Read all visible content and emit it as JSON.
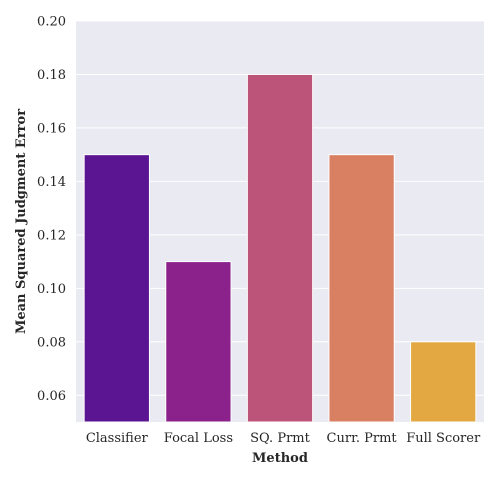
{
  "chart_data": {
    "type": "bar",
    "title": "",
    "xlabel": "Method",
    "ylabel": "Mean Squared Judgment Error",
    "categories": [
      "Classifier",
      "Focal Loss",
      "SQ. Prmt",
      "Curr. Prmt",
      "Full Scorer"
    ],
    "values": [
      0.15,
      0.11,
      0.18,
      0.15,
      0.08
    ],
    "colors": [
      "#5c1592",
      "#8b228c",
      "#bc5479",
      "#d98062",
      "#e3a842"
    ],
    "ylim": [
      0.05,
      0.2
    ],
    "yticks": [
      "0.06",
      "0.08",
      "0.10",
      "0.12",
      "0.14",
      "0.16",
      "0.18",
      "0.20"
    ],
    "grid": true,
    "background": "#eaeaf2"
  }
}
